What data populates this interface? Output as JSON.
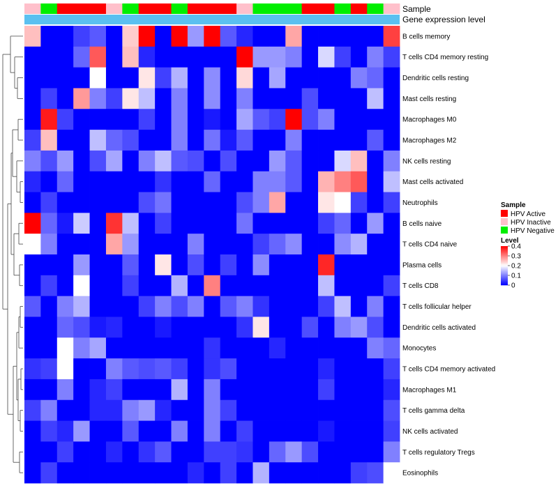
{
  "chart_data": {
    "type": "heatmap",
    "tracks": {
      "sample": "Sample",
      "gene_expression": "Gene expression level"
    },
    "row_labels": [
      "B cells memory",
      "T cells CD4 memory resting",
      "Dendritic cells resting",
      "Mast cells resting",
      "Macrophages M0",
      "Macrophages M2",
      "NK cells resting",
      "Mast cells activated",
      "Neutrophils",
      "B cells naive",
      "T cells CD4 naive",
      "Plasma cells",
      "T cells CD8",
      "T cells follicular helper",
      "Dendritic cells activated",
      "Monocytes",
      "T cells CD4 memory activated",
      "Macrophages M1",
      "T cells gamma delta",
      "NK cells activated",
      "T cells regulatory  Tregs",
      "Eosinophils"
    ],
    "column_groups": [
      "HPV Inactive",
      "HPV Negative",
      "HPV Active",
      "HPV Active",
      "HPV Active",
      "HPV Inactive",
      "HPV Negative",
      "HPV Active",
      "HPV Active",
      "HPV Negative",
      "HPV Active",
      "HPV Active",
      "HPV Active",
      "HPV Inactive",
      "HPV Negative",
      "HPV Negative",
      "HPV Negative",
      "HPV Active",
      "HPV Active",
      "HPV Negative",
      "HPV Active",
      "HPV Negative",
      "HPV Inactive"
    ],
    "values": [
      [
        0.25,
        0.0,
        0.0,
        0.05,
        0.07,
        0.0,
        0.24,
        0.4,
        0.0,
        0.4,
        0.12,
        0.4,
        0.07,
        0.03,
        0.0,
        0.0,
        0.27,
        0.0,
        0.0,
        0.0,
        0.0,
        0.0,
        0.35
      ],
      [
        0.0,
        0.0,
        0.0,
        0.08,
        0.33,
        0.0,
        0.25,
        0.03,
        0.0,
        0.0,
        0.0,
        0.0,
        0.0,
        0.4,
        0.12,
        0.12,
        0.1,
        0.0,
        0.17,
        0.05,
        0.0,
        0.1,
        0.05
      ],
      [
        0.0,
        0.0,
        0.0,
        0.0,
        0.2,
        0.0,
        0.0,
        0.22,
        0.05,
        0.14,
        0.0,
        0.11,
        0.0,
        0.23,
        0.0,
        0.13,
        0.0,
        0.0,
        0.0,
        0.0,
        0.1,
        0.08,
        0.0
      ],
      [
        0.0,
        0.05,
        0.0,
        0.28,
        0.1,
        0.05,
        0.22,
        0.15,
        0.0,
        0.1,
        0.0,
        0.11,
        0.0,
        0.1,
        0.0,
        0.0,
        0.0,
        0.06,
        0.0,
        0.0,
        0.0,
        0.15,
        0.0
      ],
      [
        0.0,
        0.38,
        0.05,
        0.0,
        0.0,
        0.0,
        0.0,
        0.05,
        0.0,
        0.1,
        0.0,
        0.02,
        0.0,
        0.13,
        0.07,
        0.05,
        0.4,
        0.06,
        0.1,
        0.0,
        0.0,
        0.0,
        0.0
      ],
      [
        0.05,
        0.25,
        0.0,
        0.0,
        0.15,
        0.08,
        0.06,
        0.0,
        0.0,
        0.1,
        0.0,
        0.09,
        0.02,
        0.07,
        0.0,
        0.0,
        0.1,
        0.0,
        0.0,
        0.0,
        0.0,
        0.07,
        0.0
      ],
      [
        0.1,
        0.06,
        0.12,
        0.0,
        0.06,
        0.13,
        0.0,
        0.1,
        0.15,
        0.07,
        0.06,
        0.0,
        0.06,
        0.0,
        0.0,
        0.12,
        0.07,
        0.0,
        0.0,
        0.17,
        0.25,
        0.0,
        0.1
      ],
      [
        0.03,
        0.0,
        0.08,
        0.0,
        0.0,
        0.0,
        0.0,
        0.0,
        0.04,
        0.0,
        0.0,
        0.08,
        0.0,
        0.0,
        0.1,
        0.1,
        0.07,
        0.0,
        0.26,
        0.3,
        0.33,
        0.0,
        0.15
      ],
      [
        0.0,
        0.05,
        0.0,
        0.0,
        0.0,
        0.0,
        0.0,
        0.06,
        0.09,
        0.0,
        0.0,
        0.0,
        0.0,
        0.06,
        0.1,
        0.27,
        0.0,
        0.0,
        0.22,
        0.2,
        0.05,
        0.0,
        0.05
      ],
      [
        0.4,
        0.08,
        0.02,
        0.16,
        0.0,
        0.36,
        0.15,
        0.0,
        0.05,
        0.0,
        0.0,
        0.0,
        0.0,
        0.09,
        0.0,
        0.0,
        0.0,
        0.0,
        0.05,
        0.08,
        0.0,
        0.12,
        0.0
      ],
      [
        0.2,
        0.1,
        0.0,
        0.0,
        0.0,
        0.27,
        0.12,
        0.0,
        0.0,
        0.0,
        0.1,
        0.0,
        0.0,
        0.0,
        0.05,
        0.08,
        0.11,
        0.0,
        0.0,
        0.11,
        0.14,
        0.0,
        0.0
      ],
      [
        0.0,
        0.0,
        0.0,
        0.12,
        0.0,
        0.0,
        0.07,
        0.0,
        0.22,
        0.0,
        0.06,
        0.0,
        0.05,
        0.0,
        0.11,
        0.0,
        0.0,
        0.0,
        0.37,
        0.0,
        0.0,
        0.0,
        0.0
      ],
      [
        0.0,
        0.05,
        0.0,
        0.2,
        0.0,
        0.0,
        0.05,
        0.0,
        0.0,
        0.14,
        0.0,
        0.3,
        0.0,
        0.0,
        0.0,
        0.0,
        0.0,
        0.0,
        0.15,
        0.0,
        0.0,
        0.0,
        0.05
      ],
      [
        0.07,
        0.0,
        0.1,
        0.14,
        0.0,
        0.0,
        0.0,
        0.05,
        0.1,
        0.06,
        0.1,
        0.0,
        0.07,
        0.1,
        0.04,
        0.0,
        0.0,
        0.0,
        0.05,
        0.15,
        0.0,
        0.1,
        0.0
      ],
      [
        0.0,
        0.0,
        0.08,
        0.06,
        0.02,
        0.03,
        0.0,
        0.0,
        0.02,
        0.0,
        0.0,
        0.0,
        0.0,
        0.04,
        0.22,
        0.0,
        0.0,
        0.06,
        0.0,
        0.1,
        0.12,
        0.06,
        0.0
      ],
      [
        0.0,
        0.0,
        0.2,
        0.1,
        0.13,
        0.0,
        0.0,
        0.0,
        0.0,
        0.0,
        0.0,
        0.04,
        0.0,
        0.0,
        0.0,
        0.03,
        0.0,
        0.0,
        0.0,
        0.0,
        0.0,
        0.1,
        0.08
      ],
      [
        0.04,
        0.05,
        0.2,
        0.0,
        0.0,
        0.1,
        0.07,
        0.06,
        0.07,
        0.05,
        0.0,
        0.04,
        0.06,
        0.0,
        0.0,
        0.0,
        0.0,
        0.0,
        0.03,
        0.0,
        0.0,
        0.0,
        0.05
      ],
      [
        0.0,
        0.0,
        0.1,
        0.0,
        0.03,
        0.05,
        0.0,
        0.0,
        0.0,
        0.14,
        0.0,
        0.1,
        0.0,
        0.0,
        0.0,
        0.0,
        0.0,
        0.0,
        0.05,
        0.0,
        0.0,
        0.0,
        0.03
      ],
      [
        0.05,
        0.1,
        0.0,
        0.0,
        0.03,
        0.03,
        0.1,
        0.12,
        0.03,
        0.0,
        0.0,
        0.1,
        0.05,
        0.0,
        0.0,
        0.0,
        0.0,
        0.0,
        0.0,
        0.0,
        0.0,
        0.0,
        0.06
      ],
      [
        0.0,
        0.05,
        0.03,
        0.12,
        0.0,
        0.0,
        0.07,
        0.0,
        0.0,
        0.1,
        0.0,
        0.1,
        0.0,
        0.05,
        0.0,
        0.0,
        0.0,
        0.0,
        0.02,
        0.0,
        0.0,
        0.0,
        0.05
      ],
      [
        0.0,
        0.0,
        0.05,
        0.0,
        0.0,
        0.03,
        0.0,
        0.04,
        0.07,
        0.0,
        0.0,
        0.05,
        0.05,
        0.04,
        0.0,
        0.08,
        0.12,
        0.06,
        0.0,
        0.0,
        0.0,
        0.0,
        0.1
      ],
      [
        0.0,
        0.05,
        0.0,
        0.0,
        0.0,
        0.0,
        0.0,
        0.0,
        0.0,
        0.0,
        0.03,
        0.0,
        0.05,
        0.0,
        0.14,
        0.0,
        0.0,
        0.0,
        0.0,
        0.0,
        0.05,
        0.06,
        0.2
      ]
    ],
    "legend": {
      "sample": {
        "title": "Sample",
        "items": [
          {
            "label": "HPV Active",
            "color": "#ff0000"
          },
          {
            "label": "HPV Inactive",
            "color": "#ffc0cb"
          },
          {
            "label": "HPV Negative",
            "color": "#00ee00"
          }
        ]
      },
      "level": {
        "title": "Level",
        "ticks": [
          {
            "value": 0.4,
            "label": "0.4"
          },
          {
            "value": 0.3,
            "label": "0.3"
          },
          {
            "value": 0.2,
            "label": "0.2"
          },
          {
            "value": 0.1,
            "label": "0.1"
          },
          {
            "value": 0.0,
            "label": "0"
          }
        ],
        "range": [
          0,
          0.4
        ]
      }
    },
    "color_scale": {
      "low": "#0000ff",
      "mid": "#ffffff",
      "high": "#ff0000",
      "mid_value": 0.2
    },
    "track_color_gene_expression": "#5bc0f0"
  }
}
